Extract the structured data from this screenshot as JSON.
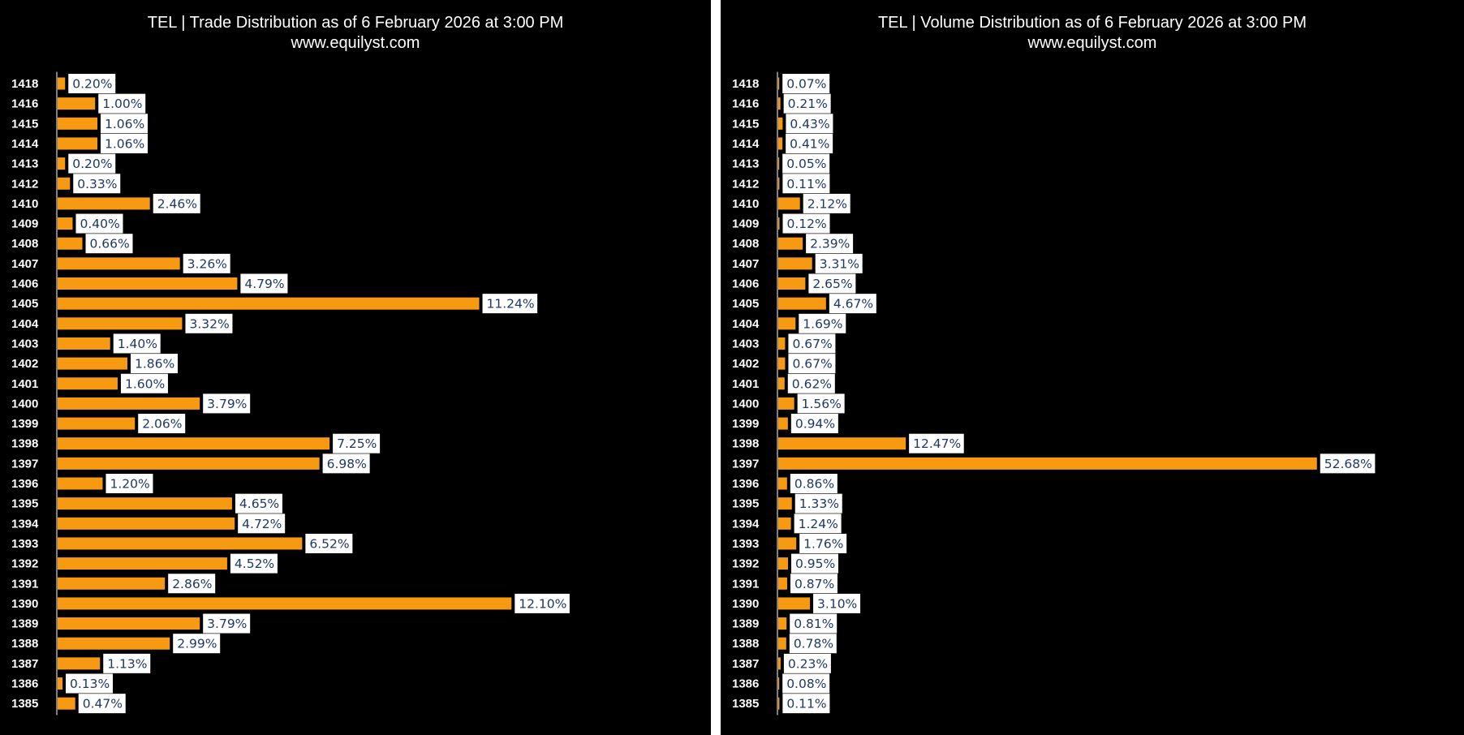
{
  "colors": {
    "background": "#000000",
    "bar": "#f79a12",
    "title_text": "#ffffff",
    "category_text": "#ffffff",
    "value_text": "#1f3864",
    "value_box": "#ffffff",
    "axis": "#ffffff"
  },
  "chart_data": [
    {
      "type": "bar",
      "orientation": "horizontal",
      "title": "TEL | Trade Distribution as of 6 February 2026 at 3:00 PM",
      "subtitle": "www.equilyst.com",
      "xlabel": "",
      "ylabel": "",
      "grid": false,
      "legend": "none",
      "value_format": "percent",
      "xlim": [
        0,
        13.5
      ],
      "categories": [
        "1418",
        "1416",
        "1415",
        "1414",
        "1413",
        "1412",
        "1410",
        "1409",
        "1408",
        "1407",
        "1406",
        "1405",
        "1404",
        "1403",
        "1402",
        "1401",
        "1400",
        "1399",
        "1398",
        "1397",
        "1396",
        "1395",
        "1394",
        "1393",
        "1392",
        "1391",
        "1390",
        "1389",
        "1388",
        "1387",
        "1386",
        "1385"
      ],
      "values": [
        0.2,
        1.0,
        1.06,
        1.06,
        0.2,
        0.33,
        2.46,
        0.4,
        0.66,
        3.26,
        4.79,
        11.24,
        3.32,
        1.4,
        1.86,
        1.6,
        3.79,
        2.06,
        7.25,
        6.98,
        1.2,
        4.65,
        4.72,
        6.52,
        4.52,
        2.86,
        12.1,
        3.79,
        2.99,
        1.13,
        0.13,
        0.47
      ],
      "labels": [
        "0.20%",
        "1.00%",
        "1.06%",
        "1.06%",
        "0.20%",
        "0.33%",
        "2.46%",
        "0.40%",
        "0.66%",
        "3.26%",
        "4.79%",
        "11.24%",
        "3.32%",
        "1.40%",
        "1.86%",
        "1.60%",
        "3.79%",
        "2.06%",
        "7.25%",
        "6.98%",
        "1.20%",
        "4.65%",
        "4.72%",
        "6.52%",
        "4.52%",
        "2.86%",
        "12.10%",
        "3.79%",
        "2.99%",
        "1.13%",
        "0.13%",
        "0.47%"
      ]
    },
    {
      "type": "bar",
      "orientation": "horizontal",
      "title": "TEL | Volume Distribution as of 6 February 2026 at 3:00 PM",
      "subtitle": "www.equilyst.com",
      "xlabel": "",
      "ylabel": "",
      "grid": false,
      "legend": "none",
      "value_format": "percent",
      "xlim": [
        0,
        60
      ],
      "categories": [
        "1418",
        "1416",
        "1415",
        "1414",
        "1413",
        "1412",
        "1410",
        "1409",
        "1408",
        "1407",
        "1406",
        "1405",
        "1404",
        "1403",
        "1402",
        "1401",
        "1400",
        "1399",
        "1398",
        "1397",
        "1396",
        "1395",
        "1394",
        "1393",
        "1392",
        "1391",
        "1390",
        "1389",
        "1388",
        "1387",
        "1386",
        "1385"
      ],
      "values": [
        0.07,
        0.21,
        0.43,
        0.41,
        0.05,
        0.11,
        2.12,
        0.12,
        2.39,
        3.31,
        2.65,
        4.67,
        1.69,
        0.67,
        0.67,
        0.62,
        1.56,
        0.94,
        12.47,
        52.68,
        0.86,
        1.33,
        1.24,
        1.76,
        0.95,
        0.87,
        3.1,
        0.81,
        0.78,
        0.23,
        0.08,
        0.11
      ],
      "labels": [
        "0.07%",
        "0.21%",
        "0.43%",
        "0.41%",
        "0.05%",
        "0.11%",
        "2.12%",
        "0.12%",
        "2.39%",
        "3.31%",
        "2.65%",
        "4.67%",
        "1.69%",
        "0.67%",
        "0.67%",
        "0.62%",
        "1.56%",
        "0.94%",
        "12.47%",
        "52.68%",
        "0.86%",
        "1.33%",
        "1.24%",
        "1.76%",
        "0.95%",
        "0.87%",
        "3.10%",
        "0.81%",
        "0.78%",
        "0.23%",
        "0.08%",
        "0.11%"
      ]
    }
  ]
}
